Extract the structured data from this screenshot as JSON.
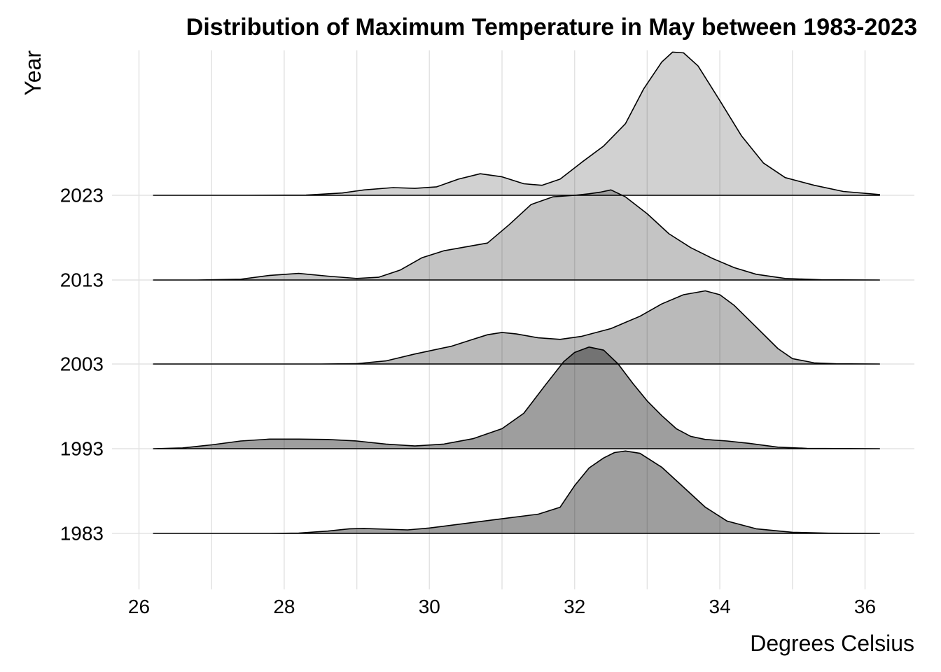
{
  "chart_data": {
    "type": "area",
    "subtype": "ridgeline",
    "title": "Distribution of Maximum Temperature in May between 1983-2023",
    "xlabel": "Degrees Celsius",
    "ylabel": "Year",
    "xlim": [
      26,
      36
    ],
    "x_ticks": [
      26,
      28,
      30,
      32,
      34,
      36
    ],
    "x_tick_labels": [
      "26",
      "28",
      "30",
      "32",
      "34",
      "36"
    ],
    "grid": true,
    "legend": "none",
    "fill_color": "#000000",
    "line_color": "#000000",
    "series": [
      {
        "name": "1983",
        "fill_opacity": 0.38,
        "points": [
          [
            26.2,
            0
          ],
          [
            27,
            0
          ],
          [
            27.8,
            0
          ],
          [
            28.2,
            0.005
          ],
          [
            28.6,
            0.03
          ],
          [
            28.9,
            0.06
          ],
          [
            29.1,
            0.065
          ],
          [
            29.4,
            0.055
          ],
          [
            29.7,
            0.045
          ],
          [
            30,
            0.07
          ],
          [
            30.5,
            0.13
          ],
          [
            31,
            0.19
          ],
          [
            31.5,
            0.25
          ],
          [
            31.8,
            0.34
          ],
          [
            32,
            0.62
          ],
          [
            32.2,
            0.85
          ],
          [
            32.4,
            0.98
          ],
          [
            32.55,
            1.05
          ],
          [
            32.7,
            1.07
          ],
          [
            32.9,
            1.04
          ],
          [
            33.2,
            0.86
          ],
          [
            33.5,
            0.6
          ],
          [
            33.8,
            0.34
          ],
          [
            34.1,
            0.16
          ],
          [
            34.5,
            0.06
          ],
          [
            35,
            0.015
          ],
          [
            35.5,
            0.003
          ],
          [
            36.2,
            0
          ]
        ]
      },
      {
        "name": "1993",
        "fill_opacity": 0.38,
        "points": [
          [
            26.2,
            0
          ],
          [
            26.6,
            0.01
          ],
          [
            27,
            0.05
          ],
          [
            27.4,
            0.1
          ],
          [
            27.8,
            0.125
          ],
          [
            28.2,
            0.125
          ],
          [
            28.6,
            0.12
          ],
          [
            29,
            0.1
          ],
          [
            29.4,
            0.06
          ],
          [
            29.8,
            0.035
          ],
          [
            30.2,
            0.06
          ],
          [
            30.6,
            0.13
          ],
          [
            31,
            0.26
          ],
          [
            31.3,
            0.46
          ],
          [
            31.6,
            0.83
          ],
          [
            31.85,
            1.13
          ],
          [
            32,
            1.25
          ],
          [
            32.2,
            1.32
          ],
          [
            32.4,
            1.28
          ],
          [
            32.6,
            1.1
          ],
          [
            32.8,
            0.85
          ],
          [
            33,
            0.62
          ],
          [
            33.2,
            0.43
          ],
          [
            33.4,
            0.26
          ],
          [
            33.6,
            0.16
          ],
          [
            33.8,
            0.12
          ],
          [
            34.1,
            0.1
          ],
          [
            34.4,
            0.07
          ],
          [
            34.8,
            0.02
          ],
          [
            35.2,
            0.005
          ],
          [
            36.2,
            0
          ]
        ]
      },
      {
        "name": "2003",
        "fill_opacity": 0.27,
        "points": [
          [
            26.2,
            0
          ],
          [
            27.5,
            0
          ],
          [
            28.5,
            0
          ],
          [
            29,
            0.005
          ],
          [
            29.4,
            0.04
          ],
          [
            29.8,
            0.13
          ],
          [
            30.3,
            0.23
          ],
          [
            30.6,
            0.32
          ],
          [
            30.8,
            0.38
          ],
          [
            31,
            0.41
          ],
          [
            31.2,
            0.39
          ],
          [
            31.5,
            0.34
          ],
          [
            31.8,
            0.32
          ],
          [
            32.1,
            0.36
          ],
          [
            32.5,
            0.46
          ],
          [
            32.9,
            0.62
          ],
          [
            33.2,
            0.78
          ],
          [
            33.5,
            0.9
          ],
          [
            33.8,
            0.95
          ],
          [
            34,
            0.9
          ],
          [
            34.2,
            0.76
          ],
          [
            34.5,
            0.48
          ],
          [
            34.8,
            0.2
          ],
          [
            35,
            0.07
          ],
          [
            35.3,
            0.015
          ],
          [
            35.6,
            0.003
          ],
          [
            36.2,
            0
          ]
        ]
      },
      {
        "name": "2013",
        "fill_opacity": 0.23,
        "points": [
          [
            26.2,
            0
          ],
          [
            26.8,
            0
          ],
          [
            27.4,
            0.01
          ],
          [
            27.8,
            0.06
          ],
          [
            28.2,
            0.085
          ],
          [
            28.6,
            0.05
          ],
          [
            29,
            0.02
          ],
          [
            29.3,
            0.035
          ],
          [
            29.6,
            0.13
          ],
          [
            29.9,
            0.29
          ],
          [
            30.2,
            0.38
          ],
          [
            30.5,
            0.43
          ],
          [
            30.8,
            0.48
          ],
          [
            31.1,
            0.72
          ],
          [
            31.4,
            0.98
          ],
          [
            31.7,
            1.08
          ],
          [
            32,
            1.1
          ],
          [
            32.2,
            1.12
          ],
          [
            32.35,
            1.14
          ],
          [
            32.5,
            1.17
          ],
          [
            32.7,
            1.08
          ],
          [
            33,
            0.86
          ],
          [
            33.3,
            0.6
          ],
          [
            33.6,
            0.42
          ],
          [
            33.9,
            0.28
          ],
          [
            34.2,
            0.16
          ],
          [
            34.5,
            0.075
          ],
          [
            34.9,
            0.02
          ],
          [
            35.4,
            0.003
          ],
          [
            36.2,
            0
          ]
        ]
      },
      {
        "name": "2023",
        "fill_opacity": 0.18,
        "points": [
          [
            26.2,
            0
          ],
          [
            27.5,
            0
          ],
          [
            28.3,
            0.003
          ],
          [
            28.8,
            0.03
          ],
          [
            29.1,
            0.07
          ],
          [
            29.5,
            0.1
          ],
          [
            29.8,
            0.09
          ],
          [
            30.1,
            0.11
          ],
          [
            30.4,
            0.21
          ],
          [
            30.7,
            0.28
          ],
          [
            31,
            0.24
          ],
          [
            31.3,
            0.15
          ],
          [
            31.55,
            0.13
          ],
          [
            31.8,
            0.21
          ],
          [
            32.1,
            0.43
          ],
          [
            32.4,
            0.64
          ],
          [
            32.7,
            0.93
          ],
          [
            32.95,
            1.38
          ],
          [
            33.2,
            1.73
          ],
          [
            33.35,
            1.86
          ],
          [
            33.5,
            1.85
          ],
          [
            33.7,
            1.68
          ],
          [
            34,
            1.23
          ],
          [
            34.3,
            0.77
          ],
          [
            34.6,
            0.42
          ],
          [
            34.9,
            0.23
          ],
          [
            35.3,
            0.13
          ],
          [
            35.7,
            0.05
          ],
          [
            36.2,
            0.01
          ]
        ]
      }
    ]
  }
}
